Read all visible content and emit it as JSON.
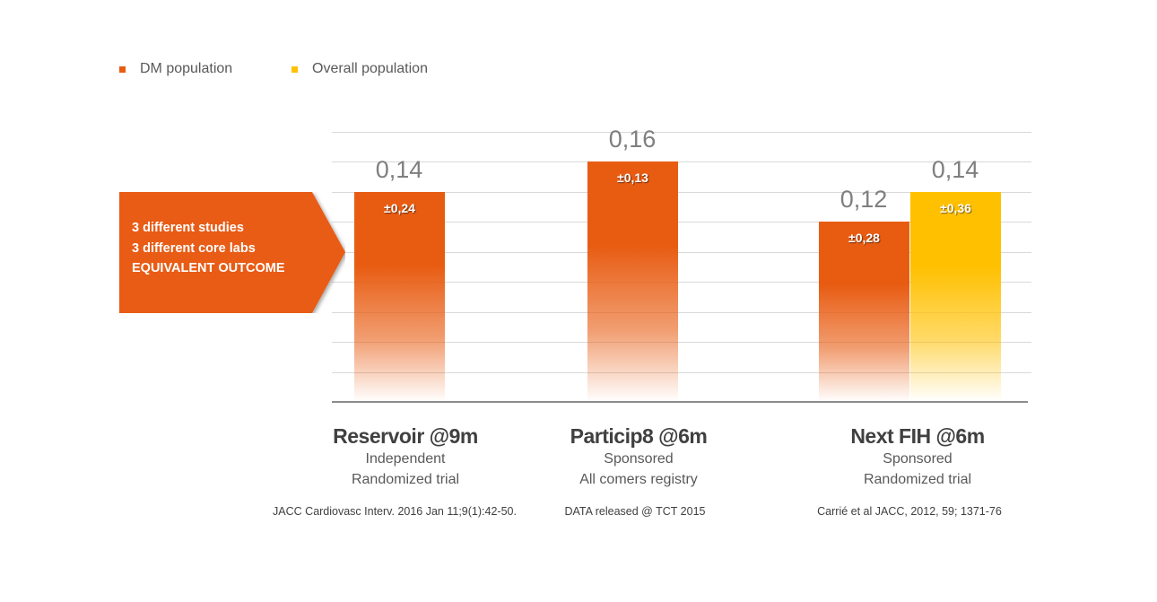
{
  "chart_data": {
    "type": "bar",
    "ylim": [
      0,
      0.18
    ],
    "grid": true,
    "legend_position": "top-left",
    "legend": [
      {
        "name": "DM population",
        "color": "#E85C12"
      },
      {
        "name": "Overall population",
        "color": "#FFC000"
      }
    ],
    "categories": [
      {
        "name": "Reservoir @9m",
        "line1": "Independent",
        "line2": "Randomized trial",
        "reference": "JACC Cardiovasc Interv. 2016 Jan 11;9(1):42-50."
      },
      {
        "name": "Particip8 @6m",
        "line1": "Sponsored",
        "line2": "All comers registry",
        "reference": "DATA released @ TCT 2015"
      },
      {
        "name": "Next FIH @6m",
        "line1": "Sponsored",
        "line2": "Randomized trial",
        "reference": "Carrié et al JACC, 2012, 59; 1371-76"
      }
    ],
    "bars": [
      {
        "category": 0,
        "series": "DM population",
        "value": 0.14,
        "label": "0,14",
        "error_label": "±0,24"
      },
      {
        "category": 1,
        "series": "DM population",
        "value": 0.16,
        "label": "0,16",
        "error_label": "±0,13"
      },
      {
        "category": 2,
        "series": "DM population",
        "value": 0.12,
        "label": "0,12",
        "error_label": "±0,28"
      },
      {
        "category": 2,
        "series": "Overall population",
        "value": 0.14,
        "label": "0,14",
        "error_label": "±0,36"
      }
    ]
  },
  "callout": {
    "lines": [
      "3 different studies",
      "3 different core labs",
      "EQUIVALENT OUTCOME"
    ],
    "color": "#E85C12"
  }
}
